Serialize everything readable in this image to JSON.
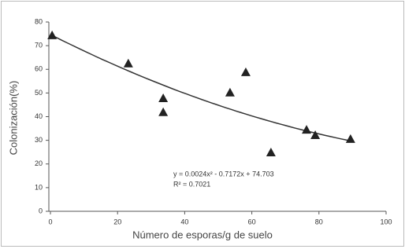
{
  "chart_data": {
    "type": "scatter",
    "x_label": "Número de esporas/g de suelo",
    "y_label": "Colonización(%)",
    "x": [
      0.5,
      23.2,
      33.6,
      33.6,
      53.5,
      58.2,
      65.7,
      76.3,
      78.9,
      89.4
    ],
    "values": [
      74.4,
      62.5,
      47.8,
      41.9,
      50.2,
      58.8,
      24.9,
      34.5,
      32.2,
      30.6
    ],
    "color": "#222222",
    "xlim": [
      0,
      100
    ],
    "xticks": [
      0,
      20,
      40,
      60,
      80,
      100
    ],
    "ylim": [
      0,
      80
    ],
    "yticks": [
      0,
      10,
      20,
      30,
      40,
      50,
      60,
      70,
      80
    ],
    "trendline": {
      "coefficients": [
        0.0024,
        -0.7172,
        74.703
      ],
      "color": "#333333"
    },
    "annotations": [
      "y = 0.0024x² - 0.7172x + 74.703",
      "R² = 0.7021"
    ]
  }
}
